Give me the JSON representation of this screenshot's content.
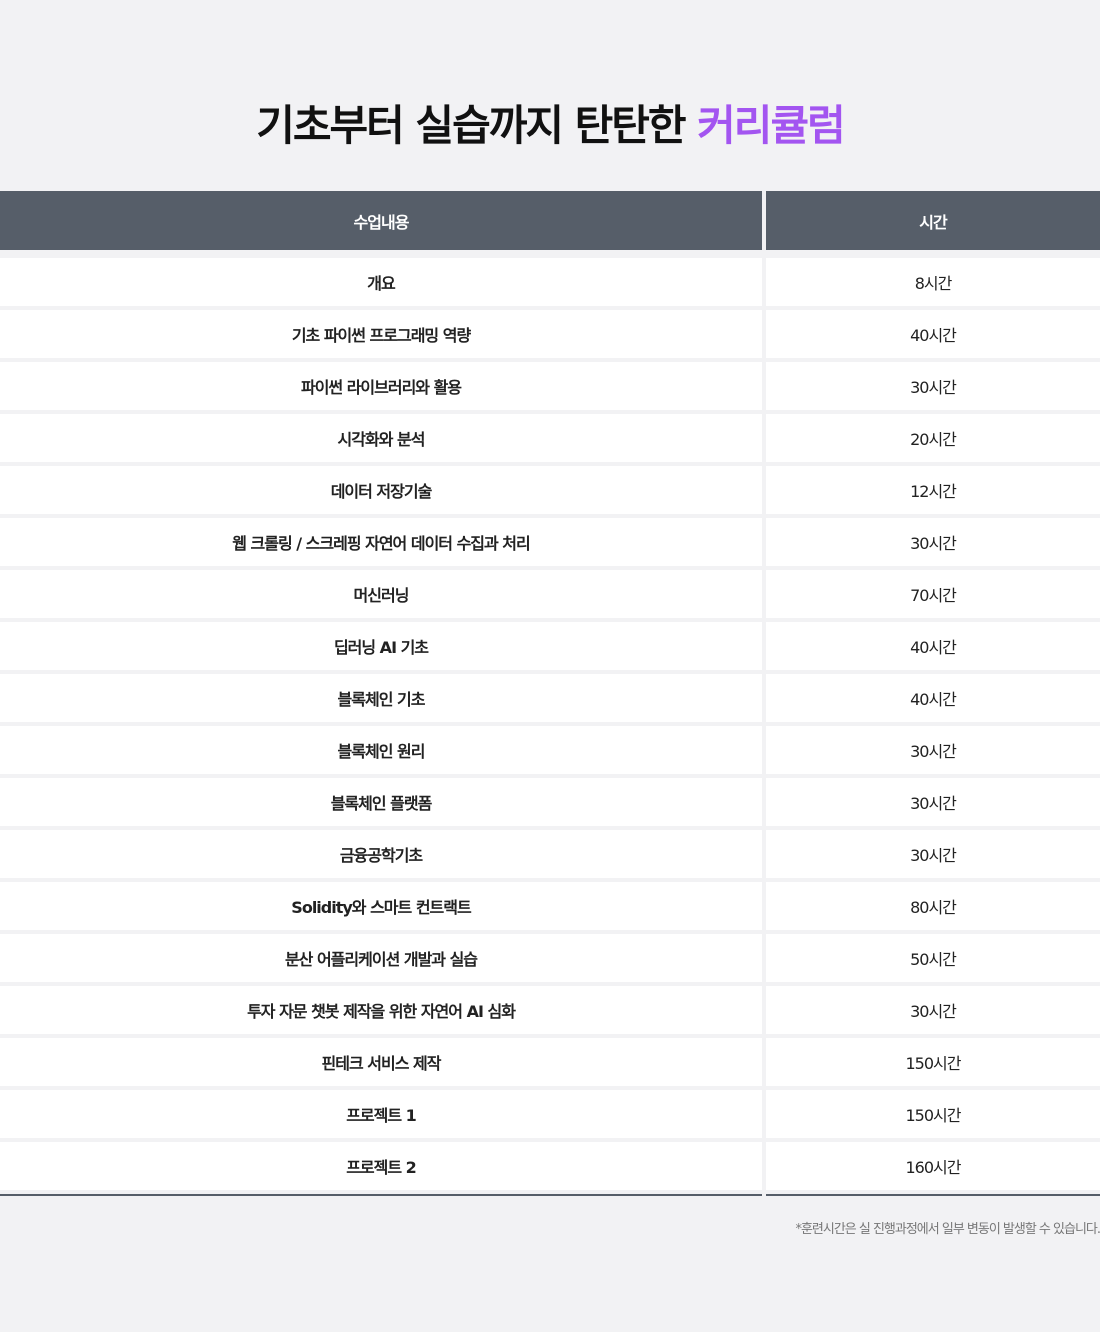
{
  "title": {
    "main": "기초부터 실습까지 탄탄한 ",
    "highlight": "커리큘럼",
    "highlight_color": "#a355f0"
  },
  "table": {
    "headers": [
      "수업내용",
      "시간"
    ],
    "rows": [
      [
        "개요",
        "8시간"
      ],
      [
        "기초 파이썬 프로그래밍 역량",
        "40시간"
      ],
      [
        "파이썬 라이브러리와 활용",
        "30시간"
      ],
      [
        "시각화와 분석",
        "20시간"
      ],
      [
        "데이터 저장기술",
        "12시간"
      ],
      [
        "웹 크롤링 / 스크레핑 자연어 데이터 수집과 처리",
        "30시간"
      ],
      [
        "머신러닝",
        "70시간"
      ],
      [
        "딥러닝 AI 기초",
        "40시간"
      ],
      [
        "블록체인 기초",
        "40시간"
      ],
      [
        "블록체인 원리",
        "30시간"
      ],
      [
        "블록체인 플랫폼",
        "30시간"
      ],
      [
        "금융공학기초",
        "30시간"
      ],
      [
        "Solidity와 스마트 컨트랙트",
        "80시간"
      ],
      [
        "분산 어플리케이션 개발과 실습",
        "50시간"
      ],
      [
        "투자 자문 챗봇 제작을 위한 자연어 AI 심화",
        "30시간"
      ],
      [
        "핀테크 서비스 제작",
        "150시간"
      ],
      [
        "프로젝트 1",
        "150시간"
      ],
      [
        "프로젝트 2",
        "160시간"
      ]
    ]
  },
  "note": "*훈련시간은 실 진행과정에서 일부 변동이 발생할 수 있습니다."
}
